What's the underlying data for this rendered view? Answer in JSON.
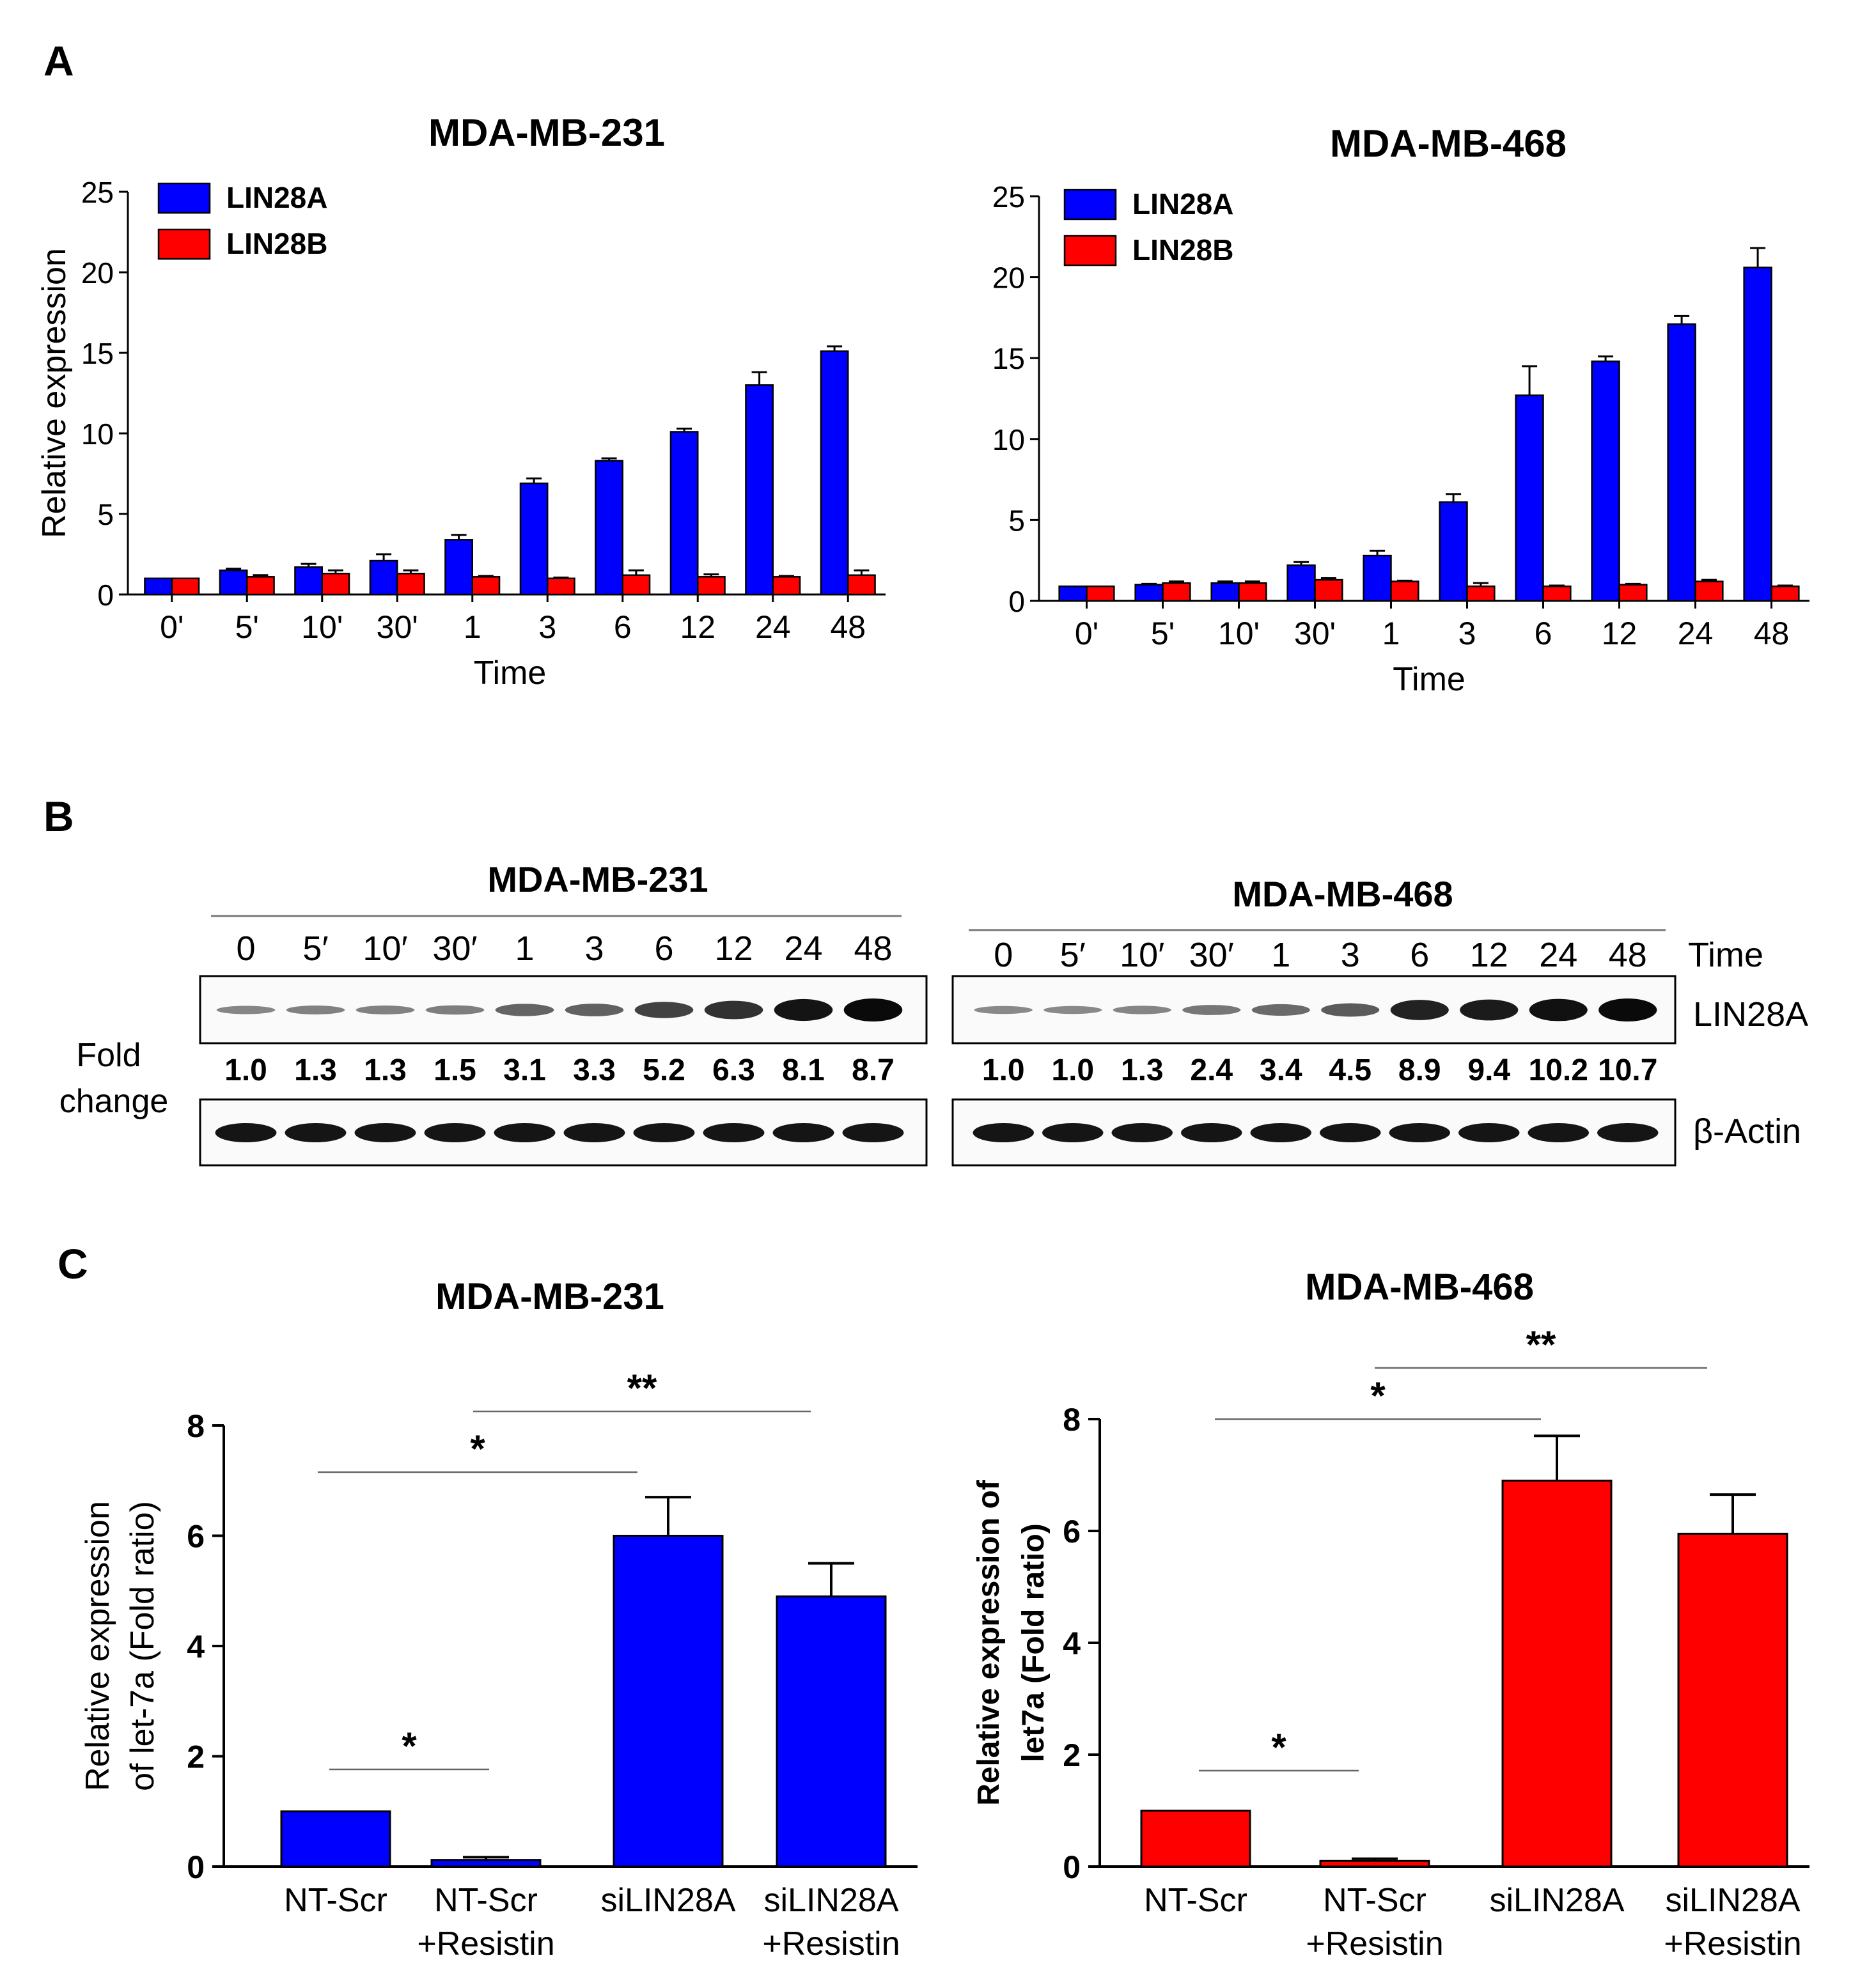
{
  "panels": {
    "A": {
      "letter": "A"
    },
    "B": {
      "letter": "B"
    },
    "C": {
      "letter": "C"
    }
  },
  "colors": {
    "lin28a": "#0000ff",
    "lin28b": "#ff0000",
    "axis": "#000000"
  },
  "chart_data": [
    {
      "id": "A1",
      "type": "bar",
      "title": "MDA-MB-231",
      "xlabel": "Time",
      "ylabel": "Relative expression",
      "ylim": [
        0,
        25
      ],
      "yticks": [
        0,
        5,
        10,
        15,
        20,
        25
      ],
      "categories": [
        "0'",
        "5'",
        "10'",
        "30'",
        "1",
        "3",
        "6",
        "12",
        "24",
        "48"
      ],
      "series": [
        {
          "name": "LIN28A",
          "color": "#0000ff",
          "values": [
            1.0,
            1.5,
            1.7,
            2.1,
            3.4,
            6.9,
            8.3,
            10.1,
            13.0,
            15.1
          ],
          "errors": [
            0,
            0.1,
            0.2,
            0.4,
            0.3,
            0.3,
            0.15,
            0.2,
            0.8,
            0.3
          ]
        },
        {
          "name": "LIN28B",
          "color": "#ff0000",
          "values": [
            1.0,
            1.1,
            1.3,
            1.3,
            1.1,
            1.0,
            1.2,
            1.1,
            1.1,
            1.2
          ],
          "errors": [
            0,
            0.1,
            0.2,
            0.2,
            0.05,
            0.05,
            0.3,
            0.15,
            0.05,
            0.3
          ]
        }
      ],
      "legend": "top-left"
    },
    {
      "id": "A2",
      "type": "bar",
      "title": "MDA-MB-468",
      "xlabel": "Time",
      "ylabel": "",
      "ylim": [
        0,
        25
      ],
      "yticks": [
        0,
        5,
        10,
        15,
        20,
        25
      ],
      "categories": [
        "0'",
        "5'",
        "10'",
        "30'",
        "1",
        "3",
        "6",
        "12",
        "24",
        "48"
      ],
      "series": [
        {
          "name": "LIN28A",
          "color": "#0000ff",
          "values": [
            0.9,
            1.0,
            1.1,
            2.2,
            2.8,
            6.1,
            12.7,
            14.8,
            17.1,
            20.6
          ],
          "errors": [
            0,
            0.05,
            0.1,
            0.2,
            0.3,
            0.5,
            1.8,
            0.3,
            0.5,
            1.2
          ]
        },
        {
          "name": "LIN28B",
          "color": "#ff0000",
          "values": [
            0.9,
            1.1,
            1.1,
            1.3,
            1.2,
            0.9,
            0.9,
            1.0,
            1.2,
            0.9
          ],
          "errors": [
            0,
            0.1,
            0.1,
            0.1,
            0.05,
            0.2,
            0.05,
            0.05,
            0.1,
            0.05
          ]
        }
      ],
      "legend": "top-left"
    },
    {
      "id": "C1",
      "type": "bar",
      "title": "MDA-MB-231",
      "xlabel": "",
      "ylabel": [
        "Relative expression",
        "of let-7a  (Fold ratio)"
      ],
      "ylim": [
        0,
        8
      ],
      "yticks": [
        0,
        2,
        4,
        6,
        8
      ],
      "categories": [
        [
          "NT-Scr"
        ],
        [
          "NT-Scr",
          "+Resistin"
        ],
        [
          "siLIN28A"
        ],
        [
          "siLIN28A",
          "+Resistin"
        ]
      ],
      "values": [
        1.0,
        0.12,
        6.0,
        4.9
      ],
      "errors": [
        0,
        0.05,
        0.7,
        0.6
      ],
      "color": "#0000ff",
      "significance": [
        {
          "from": 0,
          "to": 1,
          "label": "*"
        },
        {
          "from": 0,
          "to": 2,
          "label": "*"
        },
        {
          "from": 1,
          "to": 3,
          "label": "**"
        }
      ]
    },
    {
      "id": "C2",
      "type": "bar",
      "title": "MDA-MB-468",
      "xlabel": "",
      "ylabel": [
        "Relative expression of",
        "let7a  (Fold ratio)"
      ],
      "ylim": [
        0,
        8
      ],
      "yticks": [
        0,
        2,
        4,
        6,
        8
      ],
      "categories": [
        [
          "NT-Scr"
        ],
        [
          "NT-Scr",
          "+Resistin"
        ],
        [
          "siLIN28A"
        ],
        [
          "siLIN28A",
          "+Resistin"
        ]
      ],
      "values": [
        1.0,
        0.1,
        6.9,
        5.95
      ],
      "errors": [
        0,
        0.04,
        0.8,
        0.7
      ],
      "color": "#ff0000",
      "significance": [
        {
          "from": 0,
          "to": 1,
          "label": "*"
        },
        {
          "from": 0,
          "to": 2,
          "label": "*"
        },
        {
          "from": 1,
          "to": 3,
          "label": "**"
        }
      ]
    }
  ],
  "western": {
    "left": {
      "title": "MDA-MB-231",
      "lanes": [
        "0",
        "5′",
        "10′",
        "30′",
        "1",
        "3",
        "6",
        "12",
        "24",
        "48"
      ],
      "fold": [
        "1.0",
        "1.3",
        "1.3",
        "1.5",
        "3.1",
        "3.3",
        "5.2",
        "6.3",
        "8.1",
        "8.7"
      ],
      "fold_numeric": [
        1.0,
        1.3,
        1.3,
        1.5,
        3.1,
        3.3,
        5.2,
        6.3,
        8.1,
        8.7
      ]
    },
    "right": {
      "title": "MDA-MB-468",
      "lanes": [
        "0",
        "5′",
        "10′",
        "30′",
        "1",
        "3",
        "6",
        "12",
        "24",
        "48"
      ],
      "fold": [
        "1.0",
        "1.0",
        "1.3",
        "2.4",
        "3.4",
        "4.5",
        "8.9",
        "9.4",
        "10.2",
        "10.7"
      ],
      "fold_numeric": [
        1.0,
        1.0,
        1.3,
        2.4,
        3.4,
        4.5,
        8.9,
        9.4,
        10.2,
        10.7
      ]
    },
    "labels": {
      "time": "Time",
      "protein": "LIN28A",
      "control": "β-Actin",
      "fold_line1": "Fold",
      "fold_line2": "change"
    }
  }
}
